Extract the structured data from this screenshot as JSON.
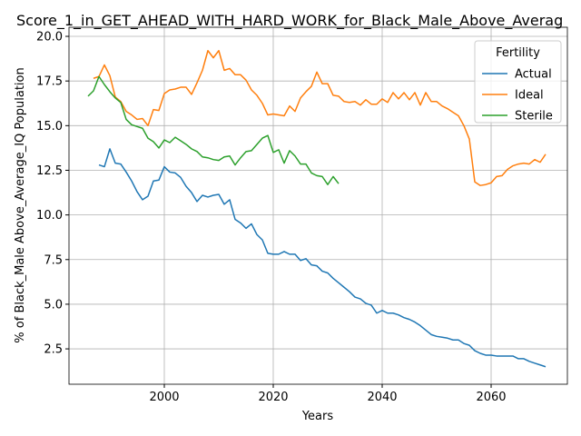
{
  "chart_data": {
    "type": "line",
    "title": "Score_1_in_GET_AHEAD_WITH_HARD_WORK_for_Black_Male_Above_Averag",
    "xlabel": "Years",
    "ylabel": "% of Black_Male Above_Average_IQ Population",
    "xlim": [
      1982.5,
      2074
    ],
    "ylim": [
      0.52,
      20.51
    ],
    "xticks": [
      2000,
      2020,
      2040,
      2060
    ],
    "yticks": [
      2.5,
      {
        "value": 5,
        "label": "5.0"
      },
      7.5,
      {
        "value": 10,
        "label": "10.0"
      },
      12.5,
      {
        "value": 15,
        "label": "15.0"
      },
      17.5,
      {
        "value": 20,
        "label": "20.0"
      }
    ],
    "grid": true,
    "legend_title": "Fertility",
    "legend_loc": "upper right",
    "series": [
      {
        "name": "Actual",
        "color": "#1f77b4",
        "x": [
          1988,
          1989,
          1990,
          1991,
          1992,
          1993,
          1994,
          1995,
          1996,
          1997,
          1998,
          1999,
          2000,
          2001,
          2002,
          2003,
          2004,
          2005,
          2006,
          2007,
          2008,
          2009,
          2010,
          2011,
          2012,
          2013,
          2014,
          2015,
          2016,
          2017,
          2018,
          2019,
          2020,
          2021,
          2022,
          2023,
          2024,
          2025,
          2026,
          2027,
          2028,
          2029,
          2030,
          2031,
          2032,
          2033,
          2034,
          2035,
          2036,
          2037,
          2038,
          2039,
          2040,
          2041,
          2042,
          2043,
          2044,
          2045,
          2046,
          2047,
          2048,
          2049,
          2050,
          2051,
          2052,
          2053,
          2054,
          2055,
          2056,
          2057,
          2058,
          2059,
          2060,
          2061,
          2062,
          2063,
          2064,
          2065,
          2066,
          2067,
          2068,
          2069,
          2070
        ],
        "values": [
          12.8,
          12.7,
          13.7,
          12.9,
          12.85,
          12.4,
          11.9,
          11.3,
          10.85,
          11.05,
          11.9,
          11.95,
          12.7,
          12.4,
          12.35,
          12.1,
          11.6,
          11.25,
          10.75,
          11.1,
          11.0,
          11.1,
          11.15,
          10.6,
          10.85,
          9.75,
          9.55,
          9.25,
          9.5,
          8.9,
          8.6,
          7.85,
          7.8,
          7.8,
          7.95,
          7.8,
          7.8,
          7.45,
          7.55,
          7.2,
          7.15,
          6.85,
          6.75,
          6.45,
          6.2,
          5.95,
          5.7,
          5.4,
          5.3,
          5.05,
          4.95,
          4.5,
          4.65,
          4.5,
          4.5,
          4.4,
          4.25,
          4.15,
          4.0,
          3.8,
          3.55,
          3.3,
          3.2,
          3.15,
          3.1,
          3.0,
          3.0,
          2.8,
          2.7,
          2.4,
          2.25,
          2.15,
          2.15,
          2.1,
          2.1,
          2.1,
          2.1,
          1.95,
          1.95,
          1.8,
          1.7,
          1.6,
          1.5
        ]
      },
      {
        "name": "Ideal",
        "color": "#ff7f0e",
        "x": [
          1987,
          1988,
          1989,
          1990,
          1991,
          1992,
          1993,
          1994,
          1995,
          1996,
          1997,
          1998,
          1999,
          2000,
          2001,
          2002,
          2003,
          2004,
          2005,
          2006,
          2007,
          2008,
          2009,
          2010,
          2011,
          2012,
          2013,
          2014,
          2015,
          2016,
          2017,
          2018,
          2019,
          2020,
          2021,
          2022,
          2023,
          2024,
          2025,
          2026,
          2027,
          2028,
          2029,
          2030,
          2031,
          2032,
          2033,
          2034,
          2035,
          2036,
          2037,
          2038,
          2039,
          2040,
          2041,
          2042,
          2043,
          2044,
          2045,
          2046,
          2047,
          2048,
          2049,
          2050,
          2051,
          2052,
          2053,
          2054,
          2055,
          2056,
          2057,
          2058,
          2059,
          2060,
          2061,
          2062,
          2063,
          2064,
          2065,
          2066,
          2067,
          2068,
          2069,
          2070
        ],
        "values": [
          17.65,
          17.75,
          18.4,
          17.8,
          16.6,
          16.35,
          15.8,
          15.6,
          15.35,
          15.4,
          15.0,
          15.9,
          15.85,
          16.8,
          17.0,
          17.05,
          17.15,
          17.15,
          16.75,
          17.4,
          18.1,
          19.2,
          18.8,
          19.2,
          18.1,
          18.2,
          17.85,
          17.85,
          17.55,
          17.0,
          16.7,
          16.25,
          15.6,
          15.65,
          15.6,
          15.55,
          16.1,
          15.8,
          16.55,
          16.9,
          17.2,
          18.0,
          17.35,
          17.35,
          16.7,
          16.65,
          16.35,
          16.3,
          16.35,
          16.15,
          16.45,
          16.2,
          16.2,
          16.5,
          16.3,
          16.85,
          16.5,
          16.85,
          16.45,
          16.85,
          16.15,
          16.85,
          16.35,
          16.35,
          16.1,
          15.95,
          15.75,
          15.55,
          15.0,
          14.25,
          11.85,
          11.65,
          11.7,
          11.8,
          12.15,
          12.2,
          12.55,
          12.75,
          12.85,
          12.9,
          12.85,
          13.1,
          12.95,
          13.4
        ]
      },
      {
        "name": "Sterile",
        "color": "#2ca02c",
        "x": [
          1986,
          1987,
          1988,
          1989,
          1990,
          1991,
          1992,
          1993,
          1994,
          1995,
          1996,
          1997,
          1998,
          1999,
          2000,
          2001,
          2002,
          2003,
          2004,
          2005,
          2006,
          2007,
          2008,
          2009,
          2010,
          2011,
          2012,
          2013,
          2014,
          2015,
          2016,
          2017,
          2018,
          2019,
          2020,
          2021,
          2022,
          2023,
          2024,
          2025,
          2026,
          2027,
          2028,
          2029,
          2030,
          2031,
          2032
        ],
        "values": [
          16.65,
          16.95,
          17.75,
          17.3,
          16.9,
          16.55,
          16.3,
          15.35,
          15.05,
          14.95,
          14.85,
          14.3,
          14.1,
          13.75,
          14.2,
          14.05,
          14.35,
          14.15,
          13.95,
          13.7,
          13.55,
          13.25,
          13.2,
          13.1,
          13.05,
          13.25,
          13.3,
          12.8,
          13.2,
          13.55,
          13.6,
          13.95,
          14.3,
          14.45,
          13.5,
          13.65,
          12.9,
          13.6,
          13.3,
          12.85,
          12.85,
          12.35,
          12.2,
          12.15,
          11.7,
          12.15,
          11.75
        ]
      }
    ]
  }
}
